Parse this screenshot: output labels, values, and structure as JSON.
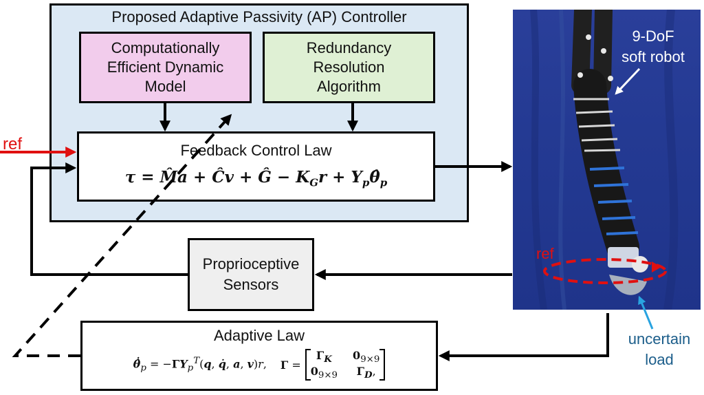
{
  "controller": {
    "title": "Proposed Adaptive Passivity (AP) Controller",
    "model_box": "Computationally\nEfficient Dynamic\nModel",
    "redundancy_box": "Redundancy\nResolution\nAlgorithm",
    "feedback_title": "Feedback Control Law"
  },
  "sensors_box": "Proprioceptive\nSensors",
  "adaptive_title": "Adaptive Law",
  "labels": {
    "ref_left": "ref",
    "ref_photo": "ref",
    "robot": "9-DoF\nsoft robot",
    "load": "uncertain\nload"
  },
  "colors": {
    "controller_bg": "#dbe8f4",
    "model_bg": "#f2ccec",
    "redundancy_bg": "#dff0d4",
    "sensors_bg": "#efefef",
    "ref": "#e01010",
    "load_label": "#1b5d8a",
    "load_arrow": "#29a3e0"
  }
}
